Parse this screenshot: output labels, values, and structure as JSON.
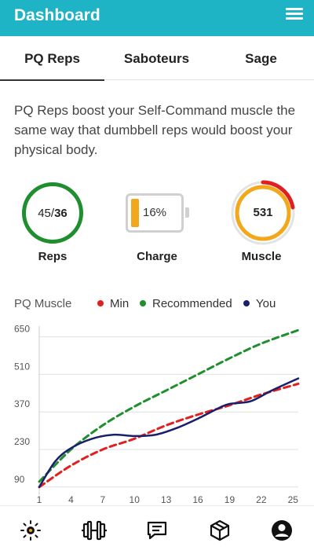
{
  "header": {
    "title": "Dashboard",
    "menu_icon": "hamburger-menu-icon"
  },
  "tabs": [
    {
      "label": "PQ Reps",
      "active": true
    },
    {
      "label": "Saboteurs",
      "active": false
    },
    {
      "label": "Sage",
      "active": false
    }
  ],
  "intro": "PQ Reps boost your Self-Command muscle the same way that dumbbell reps would boost your physical body.",
  "stats": {
    "reps": {
      "current": "45",
      "separator": "/",
      "goal": "36",
      "label": "Reps",
      "color": "#1e8e2e"
    },
    "charge": {
      "percent": 16,
      "text": "16%",
      "label": "Charge",
      "color": "#f2a81a"
    },
    "muscle": {
      "value": "531",
      "label": "Muscle",
      "ring_color": "#f2a81a",
      "accent_color": "#e02020"
    }
  },
  "legend": {
    "title": "PQ Muscle",
    "items": [
      {
        "name": "Min",
        "color": "#e02020"
      },
      {
        "name": "Recommended",
        "color": "#1e8e2e"
      },
      {
        "name": "You",
        "color": "#1a1f6b"
      }
    ]
  },
  "chart_data": {
    "type": "line",
    "x_ticks": [
      "1",
      "4",
      "7",
      "10",
      "13",
      "16",
      "19",
      "22",
      "25"
    ],
    "y_ticks": [
      "90",
      "230",
      "370",
      "510",
      "650"
    ],
    "xlim": [
      1,
      25.5
    ],
    "ylim": [
      60,
      690
    ],
    "grid": "horizontal",
    "series": [
      {
        "name": "Min",
        "color": "#e02020",
        "style": "dashed",
        "x": [
          1,
          4,
          7,
          10,
          13,
          16,
          19,
          22,
          25.5
        ],
        "y": [
          90,
          170,
          230,
          270,
          320,
          360,
          395,
          435,
          475
        ]
      },
      {
        "name": "Recommended",
        "color": "#1e8e2e",
        "style": "dashed",
        "x": [
          1,
          4,
          7,
          10,
          13,
          16,
          19,
          22,
          25.5
        ],
        "y": [
          110,
          230,
          320,
          390,
          450,
          510,
          570,
          625,
          675
        ]
      },
      {
        "name": "You",
        "color": "#1a1f6b",
        "style": "solid",
        "x": [
          1,
          2.5,
          4,
          6,
          8,
          10,
          12,
          14,
          16,
          18,
          19,
          21,
          23,
          25.5
        ],
        "y": [
          90,
          185,
          235,
          270,
          285,
          280,
          285,
          310,
          345,
          385,
          400,
          410,
          450,
          495
        ]
      }
    ]
  },
  "bottom_nav": [
    {
      "icon": "sun-icon",
      "active": true
    },
    {
      "icon": "dumbbell-icon",
      "active": false
    },
    {
      "icon": "chat-icon",
      "active": false
    },
    {
      "icon": "box-icon",
      "active": false
    },
    {
      "icon": "profile-icon",
      "active": false
    }
  ]
}
